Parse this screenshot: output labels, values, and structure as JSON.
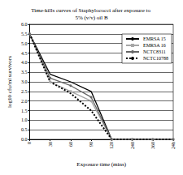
{
  "chart_data": {
    "type": "line",
    "title": "Time-kills curves of Staphylococci after exposure to 5% (v/v) oil B",
    "x_label": "Exposure time (mins)",
    "y_label": "log10 cfu/ml survivors",
    "categories": [
      "0",
      "30",
      "60",
      "90",
      "120",
      "240",
      "360",
      "24h"
    ],
    "series": [
      {
        "name": "EMRSA 15",
        "color": "#000000",
        "line_style": "solid",
        "marker": "none",
        "values": [
          5.5,
          3.4,
          3.0,
          2.5,
          0,
          0,
          0,
          0
        ]
      },
      {
        "name": "EMRSA 16",
        "color": "#a6a6a6",
        "line_style": "solid",
        "marker": "square",
        "values": [
          5.5,
          3.0,
          2.5,
          2.0,
          0,
          0,
          0,
          0
        ]
      },
      {
        "name": "NCTC8311",
        "color": "#666666",
        "line_style": "solid",
        "marker": "circle",
        "values": [
          5.5,
          3.2,
          2.8,
          2.2,
          0,
          0,
          0,
          0
        ]
      },
      {
        "name": "NCTC10788",
        "color": "#000000",
        "line_style": "dotted",
        "marker": "none",
        "values": [
          5.5,
          3.0,
          2.4,
          1.5,
          0,
          0,
          0,
          0
        ]
      }
    ],
    "ylim": [
      0,
      6
    ],
    "yticks": [
      {
        "value": 0,
        "label": "0.0"
      },
      {
        "value": 0.5,
        "label": "0.5"
      },
      {
        "value": 1,
        "label": "1.0"
      },
      {
        "value": 1.5,
        "label": "1.5"
      },
      {
        "value": 2,
        "label": "2.0"
      },
      {
        "value": 2.5,
        "label": "2.5"
      },
      {
        "value": 3,
        "label": "3.0"
      },
      {
        "value": 3.5,
        "label": "3.5"
      },
      {
        "value": 4,
        "label": "4.0"
      },
      {
        "value": 4.5,
        "label": "4.5"
      },
      {
        "value": 5,
        "label": "5.0"
      },
      {
        "value": 5.5,
        "label": "5.5"
      },
      {
        "value": 6,
        "label": "6.0"
      }
    ],
    "grid": true,
    "legend": "top-right"
  }
}
